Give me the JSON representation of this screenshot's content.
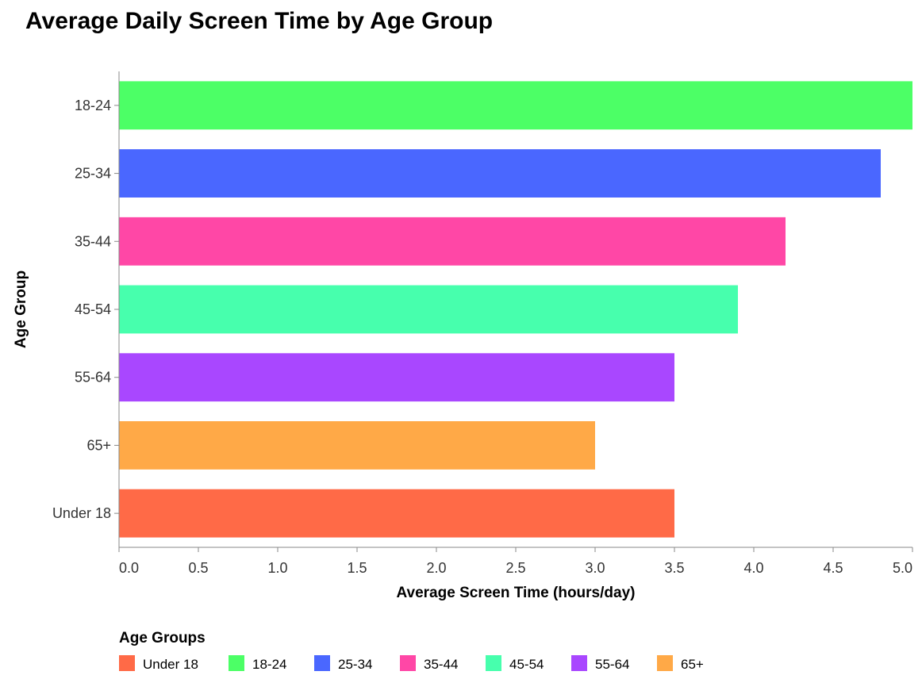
{
  "chart_data": {
    "type": "bar",
    "orientation": "horizontal",
    "title": "Average Daily Screen Time by Age Group",
    "xlabel": "Average Screen Time (hours/day)",
    "ylabel": "Age Group",
    "xlim": [
      0,
      5
    ],
    "xticks": [
      "0.0",
      "0.5",
      "1.0",
      "1.5",
      "2.0",
      "2.5",
      "3.0",
      "3.5",
      "4.0",
      "4.5",
      "5.0"
    ],
    "grid": false,
    "categories": [
      "18-24",
      "25-34",
      "35-44",
      "45-54",
      "55-64",
      "65+",
      "Under 18"
    ],
    "values": [
      5.0,
      4.8,
      4.2,
      3.9,
      3.5,
      3.0,
      3.5
    ],
    "colors": [
      "#4cff66",
      "#4a67ff",
      "#ff47a6",
      "#47ffad",
      "#a947ff",
      "#ffa947",
      "#ff6a47"
    ],
    "legend": {
      "title": "Age Groups",
      "placement": "bottom-left",
      "items": [
        {
          "label": "Under 18",
          "color": "#ff6a47"
        },
        {
          "label": "18-24",
          "color": "#4cff66"
        },
        {
          "label": "25-34",
          "color": "#4a67ff"
        },
        {
          "label": "35-44",
          "color": "#ff47a6"
        },
        {
          "label": "45-54",
          "color": "#47ffad"
        },
        {
          "label": "55-64",
          "color": "#a947ff"
        },
        {
          "label": "65+",
          "color": "#ffa947"
        }
      ]
    }
  }
}
